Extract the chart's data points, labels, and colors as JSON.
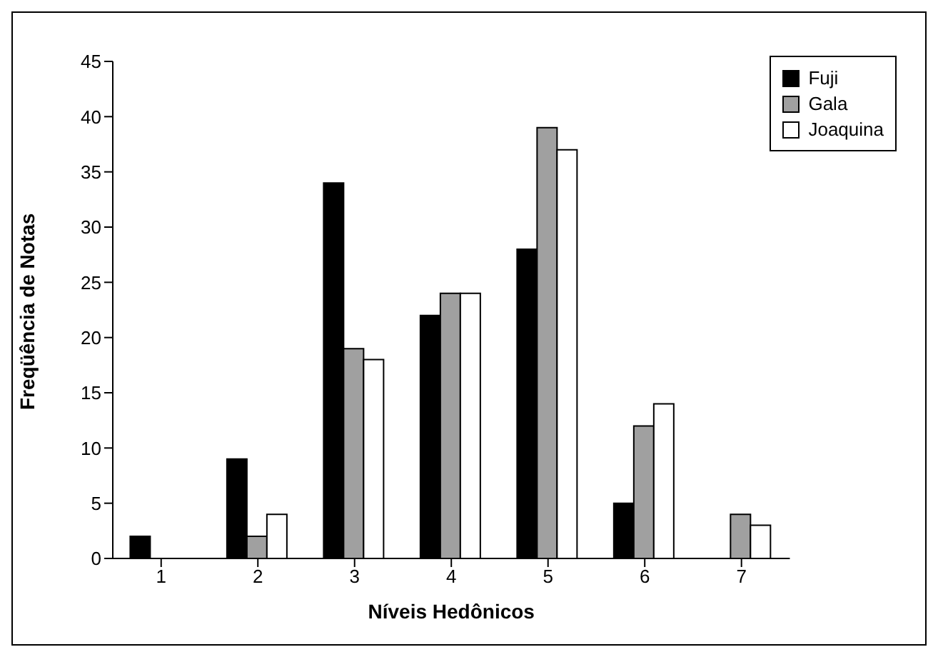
{
  "chart_data": {
    "type": "bar",
    "xlabel": "Níveis Hedônicos",
    "ylabel": "Freqüência de Notas",
    "categories": [
      "1",
      "2",
      "3",
      "4",
      "5",
      "6",
      "7"
    ],
    "series": [
      {
        "name": "Fuji",
        "color": "#000000",
        "values": [
          2,
          9,
          34,
          22,
          28,
          5,
          0
        ]
      },
      {
        "name": "Gala",
        "color": "#a0a0a0",
        "values": [
          0,
          2,
          19,
          24,
          39,
          12,
          4
        ]
      },
      {
        "name": "Joaquina",
        "color": "#ffffff",
        "values": [
          0,
          4,
          18,
          24,
          37,
          14,
          3
        ]
      }
    ],
    "ylim": [
      0,
      45
    ],
    "yticks": [
      0,
      5,
      10,
      15,
      20,
      25,
      30,
      35,
      40,
      45
    ],
    "grid": false,
    "legend": "top right"
  }
}
